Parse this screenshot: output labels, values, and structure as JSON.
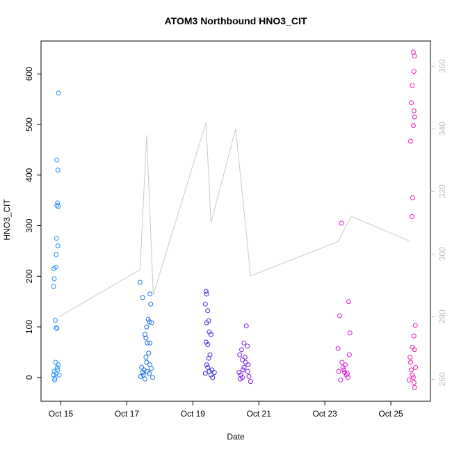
{
  "chart_data": {
    "type": "scatter",
    "title": "ATOM3 Northbound HNO3_CIT",
    "xlabel": "Date",
    "ylabel": "HNO3_CIT",
    "x_tick_labels": [
      "Oct 15",
      "Oct 17",
      "Oct 19",
      "Oct 21",
      "Oct 23",
      "Oct 25"
    ],
    "x_tick_days": [
      15,
      17,
      19,
      21,
      23,
      25
    ],
    "xlim_days": [
      14.4,
      26.2
    ],
    "ylim": [
      -47,
      665
    ],
    "y_ticks": [
      0,
      100,
      200,
      300,
      400,
      500,
      600
    ],
    "right_axis": {
      "ticks": [
        260,
        280,
        300,
        320,
        340,
        360
      ],
      "ylim": [
        253,
        368
      ],
      "color": "#bdbdbd"
    },
    "grid": false,
    "series": [
      {
        "color": "#1E90FF",
        "points": [
          [
            14.78,
            5
          ],
          [
            14.8,
            12
          ],
          [
            14.82,
            -2
          ],
          [
            14.84,
            30
          ],
          [
            14.79,
            215
          ],
          [
            14.8,
            195
          ],
          [
            14.78,
            180
          ],
          [
            14.83,
            113
          ],
          [
            14.86,
            98
          ],
          [
            14.88,
            97
          ],
          [
            14.85,
            218
          ],
          [
            14.86,
            243
          ],
          [
            14.87,
            275
          ],
          [
            14.88,
            340
          ],
          [
            14.9,
            345
          ],
          [
            14.91,
            260
          ],
          [
            14.91,
            410
          ],
          [
            14.88,
            430
          ],
          [
            14.92,
            338
          ],
          [
            14.93,
            562
          ],
          [
            14.86,
            8
          ],
          [
            14.9,
            15
          ],
          [
            14.92,
            25
          ],
          [
            14.95,
            5
          ],
          [
            14.81,
            -5
          ],
          [
            14.89,
            20
          ]
        ]
      },
      {
        "color": "#1C6FE8",
        "points": [
          [
            17.4,
            188
          ],
          [
            17.48,
            158
          ],
          [
            17.7,
            165
          ],
          [
            17.72,
            145
          ],
          [
            17.65,
            115
          ],
          [
            17.68,
            110
          ],
          [
            17.6,
            100
          ],
          [
            17.75,
            108
          ],
          [
            17.55,
            85
          ],
          [
            17.62,
            68
          ],
          [
            17.7,
            68
          ],
          [
            17.58,
            78
          ],
          [
            17.66,
            48
          ],
          [
            17.45,
            20
          ],
          [
            17.5,
            5
          ],
          [
            17.55,
            -3
          ],
          [
            17.62,
            12
          ],
          [
            17.7,
            25
          ],
          [
            17.78,
            0
          ],
          [
            17.52,
            15
          ],
          [
            17.6,
            30
          ],
          [
            17.68,
            8
          ],
          [
            17.74,
            18
          ],
          [
            17.42,
            2
          ],
          [
            17.58,
            40
          ],
          [
            17.48,
            10
          ]
        ]
      },
      {
        "color": "#3A2FE0",
        "points": [
          [
            19.4,
            170
          ],
          [
            19.42,
            165
          ],
          [
            19.38,
            145
          ],
          [
            19.45,
            132
          ],
          [
            19.48,
            112
          ],
          [
            19.42,
            108
          ],
          [
            19.5,
            90
          ],
          [
            19.55,
            85
          ],
          [
            19.4,
            70
          ],
          [
            19.45,
            65
          ],
          [
            19.52,
            45
          ],
          [
            19.48,
            38
          ],
          [
            19.45,
            20
          ],
          [
            19.5,
            12
          ],
          [
            19.55,
            5
          ],
          [
            19.6,
            0
          ],
          [
            19.42,
            25
          ],
          [
            19.58,
            15
          ],
          [
            19.65,
            10
          ],
          [
            19.38,
            8
          ]
        ]
      },
      {
        "color": "#7B22E6",
        "points": [
          [
            20.4,
            10
          ],
          [
            20.45,
            5
          ],
          [
            20.5,
            0
          ],
          [
            20.55,
            20
          ],
          [
            20.6,
            30
          ],
          [
            20.42,
            45
          ],
          [
            20.48,
            55
          ],
          [
            20.55,
            68
          ],
          [
            20.62,
            102
          ],
          [
            20.65,
            62
          ],
          [
            20.58,
            40
          ],
          [
            20.52,
            15
          ],
          [
            20.7,
            2
          ],
          [
            20.75,
            -8
          ],
          [
            20.68,
            25
          ],
          [
            20.44,
            -3
          ],
          [
            20.66,
            12
          ],
          [
            20.5,
            35
          ]
        ]
      },
      {
        "color": "#D61AD8",
        "points": [
          [
            23.4,
            57
          ],
          [
            23.45,
            122
          ],
          [
            23.5,
            305
          ],
          [
            23.55,
            20
          ],
          [
            23.6,
            10
          ],
          [
            23.65,
            5
          ],
          [
            23.7,
            0
          ],
          [
            23.72,
            150
          ],
          [
            23.74,
            45
          ],
          [
            23.76,
            88
          ],
          [
            23.52,
            30
          ],
          [
            23.58,
            15
          ],
          [
            23.48,
            -5
          ],
          [
            23.62,
            25
          ],
          [
            23.68,
            8
          ],
          [
            23.42,
            12
          ]
        ]
      },
      {
        "color": "#F21AB9",
        "points": [
          [
            25.6,
            467
          ],
          [
            25.62,
            543
          ],
          [
            25.65,
            577
          ],
          [
            25.68,
            643
          ],
          [
            25.7,
            605
          ],
          [
            25.72,
            635
          ],
          [
            25.7,
            527
          ],
          [
            25.72,
            515
          ],
          [
            25.68,
            498
          ],
          [
            25.64,
            318
          ],
          [
            25.66,
            355
          ],
          [
            25.74,
            103
          ],
          [
            25.7,
            82
          ],
          [
            25.72,
            55
          ],
          [
            25.65,
            60
          ],
          [
            25.6,
            30
          ],
          [
            25.62,
            15
          ],
          [
            25.65,
            5
          ],
          [
            25.68,
            0
          ],
          [
            25.7,
            -10
          ],
          [
            25.72,
            -20
          ],
          [
            25.75,
            20
          ],
          [
            25.55,
            -5
          ],
          [
            25.58,
            40
          ]
        ]
      }
    ],
    "line_series": {
      "color": "#c8c8c8",
      "axis": "right",
      "points": [
        [
          14.95,
          280
        ],
        [
          17.4,
          295
        ],
        [
          17.6,
          338
        ],
        [
          17.8,
          287
        ],
        [
          19.4,
          342
        ],
        [
          19.55,
          310
        ],
        [
          20.3,
          340
        ],
        [
          20.75,
          293
        ],
        [
          23.4,
          304
        ],
        [
          23.8,
          312
        ],
        [
          25.6,
          304
        ]
      ]
    }
  }
}
